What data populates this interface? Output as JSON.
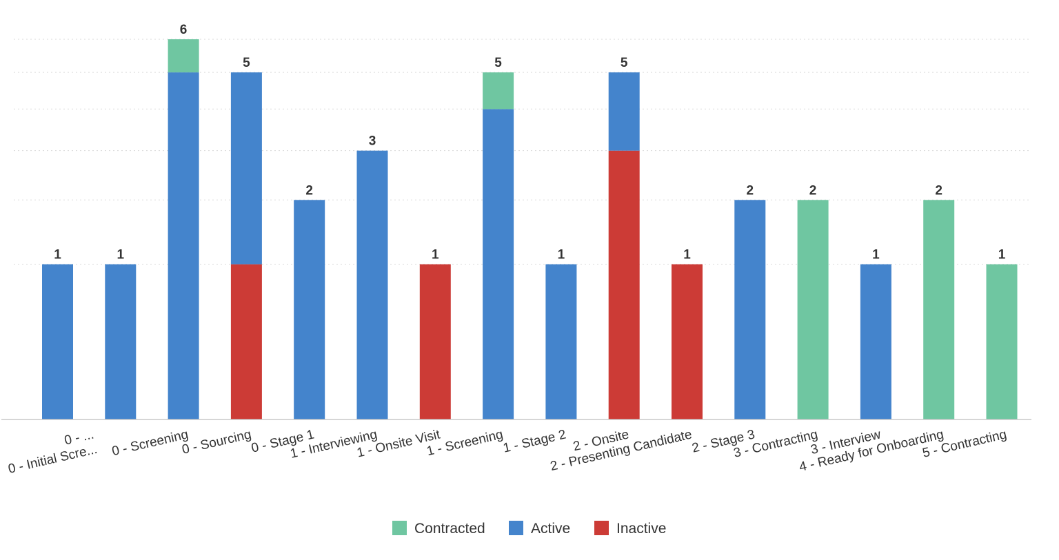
{
  "chart_data": {
    "type": "bar",
    "stacked": true,
    "title": "",
    "xlabel": "",
    "ylabel": "",
    "categories": [
      [
        "0 - ...",
        "0 - Initial Scre..."
      ],
      [
        "0 - Screening"
      ],
      [
        "0 - Sourcing"
      ],
      [
        "0 - Stage 1"
      ],
      [
        "1 - Interviewing"
      ],
      [
        "1 - Onsite Visit"
      ],
      [
        "1 - Screening"
      ],
      [
        "1 - Stage 2"
      ],
      [
        "2 - Onsite"
      ],
      [
        "2 - Presenting Candidate"
      ],
      [
        "2 - Stage 3"
      ],
      [
        "3 - Contracting"
      ],
      [
        "3 - Interview"
      ],
      [
        "4 - Ready for Onboarding"
      ],
      [
        "5 - Contracting"
      ]
    ],
    "bars": [
      {
        "slot": 0,
        "label": "0 - ...",
        "Inactive": 0,
        "Active": 1,
        "Contracted": 0,
        "total": "1"
      },
      {
        "slot": 1,
        "label": "0 - Initial Scre...",
        "Inactive": 0,
        "Active": 1,
        "Contracted": 0,
        "total": "1"
      },
      {
        "slot": 2,
        "label": "0 - Screening",
        "Inactive": 0,
        "Active": 5,
        "Contracted": 1,
        "total": "6"
      },
      {
        "slot": 3,
        "label": "0 - Sourcing",
        "Inactive": 1,
        "Active": 4,
        "Contracted": 0,
        "total": "5"
      },
      {
        "slot": 4,
        "label": "0 - Stage 1",
        "Inactive": 0,
        "Active": 2,
        "Contracted": 0,
        "total": "2"
      },
      {
        "slot": 5,
        "label": "1 - Interviewing",
        "Inactive": 0,
        "Active": 3,
        "Contracted": 0,
        "total": "3"
      },
      {
        "slot": 6,
        "label": "1 - Onsite Visit",
        "Inactive": 1,
        "Active": 0,
        "Contracted": 0,
        "total": "1"
      },
      {
        "slot": 7,
        "label": "1 - Screening",
        "Inactive": 0,
        "Active": 4,
        "Contracted": 1,
        "total": "5"
      },
      {
        "slot": 8,
        "label": "1 - Stage 2",
        "Inactive": 0,
        "Active": 1,
        "Contracted": 0,
        "total": "1"
      },
      {
        "slot": 9,
        "label": "2 - Onsite",
        "Inactive": 3,
        "Active": 2,
        "Contracted": 0,
        "total": "5"
      },
      {
        "slot": 10,
        "label": "2 - Presenting Candidate",
        "Inactive": 1,
        "Active": 0,
        "Contracted": 0,
        "total": "1"
      },
      {
        "slot": 11,
        "label": "2 - Stage 3",
        "Inactive": 0,
        "Active": 2,
        "Contracted": 0,
        "total": "2"
      },
      {
        "slot": 12,
        "label": "3 - Contracting",
        "Inactive": 0,
        "Active": 0,
        "Contracted": 2,
        "total": "2"
      },
      {
        "slot": 13,
        "label": "3 - Interview",
        "Inactive": 0,
        "Active": 1,
        "Contracted": 0,
        "total": "1"
      },
      {
        "slot": 14,
        "label": "4 - Ready for Onboarding",
        "Inactive": 0,
        "Active": 0,
        "Contracted": 2,
        "total": "2"
      },
      {
        "slot": 15,
        "label": "5 - Contracting",
        "Inactive": 0,
        "Active": 0,
        "Contracted": 1,
        "total": "1"
      }
    ],
    "series": [
      {
        "name": "Contracted",
        "color": "#6fc6a1"
      },
      {
        "name": "Active",
        "color": "#4484cc"
      },
      {
        "name": "Inactive",
        "color": "#cc3b36"
      }
    ],
    "stack_order": [
      "Inactive",
      "Active",
      "Contracted"
    ],
    "ylim": [
      0,
      6
    ],
    "y_axis_scale": "sqrt",
    "gridlines": [
      1,
      2,
      3,
      4,
      5,
      6
    ],
    "grid": true,
    "legend_position": "bottom-center"
  }
}
